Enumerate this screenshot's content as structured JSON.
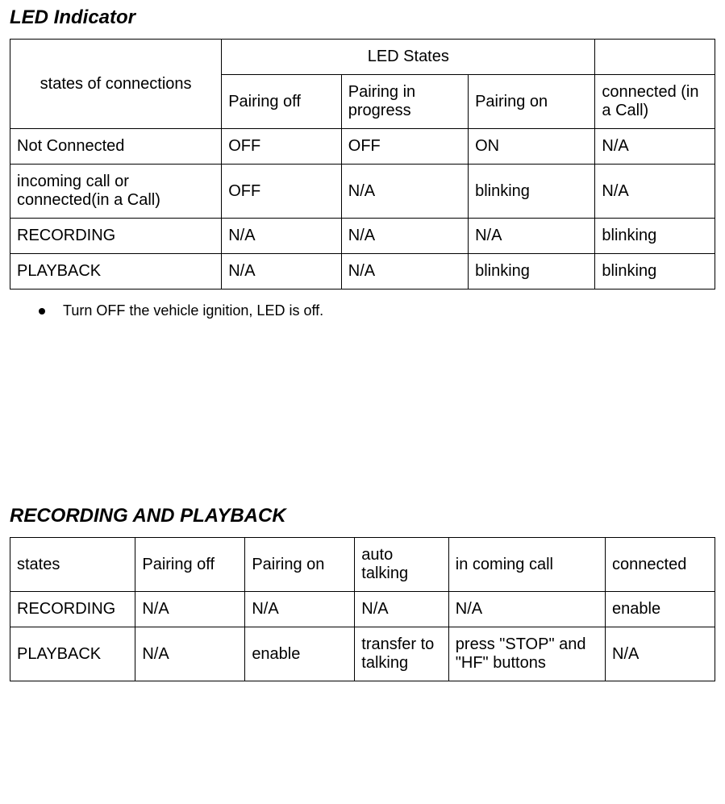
{
  "led": {
    "title": "LED Indicator",
    "row_header_label": "states of connections",
    "group_header": "LED States",
    "subheaders": {
      "c1": "Pairing off",
      "c2": "Pairing in progress",
      "c3": "Pairing on",
      "c4": " connected (in a Call)"
    },
    "rows": [
      {
        "label": "Not Connected",
        "c1": "OFF",
        "c2": "OFF",
        "c3": "ON",
        "c4": "N/A"
      },
      {
        "label": "incoming call or connected(in a Call)",
        "c1": "OFF",
        "c2": "N/A",
        "c3": "blinking",
        "c4": "N/A"
      },
      {
        "label": "RECORDING",
        "c1": "N/A",
        "c2": "N/A",
        "c3": "N/A",
        "c4": "blinking"
      },
      {
        "label": "PLAYBACK",
        "c1": "N/A",
        "c2": "N/A",
        "c3": "blinking",
        "c4": "blinking"
      }
    ],
    "bullet": "Turn OFF the vehicle ignition, LED is off."
  },
  "rec": {
    "title": "RECORDING AND PLAYBACK",
    "headers": {
      "c0": "states",
      "c1": "Pairing off",
      "c2": "Pairing on",
      "c3": "auto talking",
      "c4": "in coming call",
      "c5": "connected"
    },
    "rows": [
      {
        "c0": "RECORDING",
        "c1": "N/A",
        "c2": "N/A",
        "c3": "N/A",
        "c4": "N/A",
        "c5": "enable"
      },
      {
        "c0": "PLAYBACK",
        "c1": "N/A",
        "c2": "enable",
        "c3": "transfer to talking",
        "c4": "press \"STOP\" and \"HF\" buttons",
        "c5": "N/A"
      }
    ]
  }
}
